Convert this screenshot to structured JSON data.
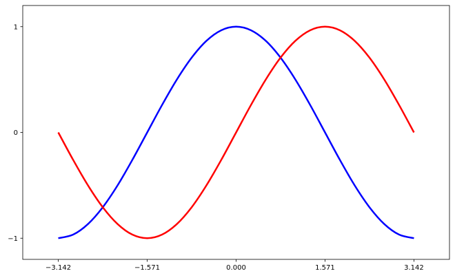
{
  "chart_data": {
    "type": "line",
    "title": "",
    "xlabel": "",
    "ylabel": "",
    "xlim": [
      -3.77,
      3.77
    ],
    "ylim": [
      -1.2,
      1.2
    ],
    "grid": false,
    "xticks": [
      -3.142,
      -1.571,
      0.0,
      1.571,
      3.142
    ],
    "xtick_labels": [
      "−3.142",
      "−1.571",
      "0.000",
      "1.571",
      "3.142"
    ],
    "yticks": [
      -1,
      0,
      1
    ],
    "ytick_labels": [
      "−1",
      "0",
      "1"
    ],
    "x": [
      -3.142,
      -2.88,
      -2.618,
      -2.356,
      -2.094,
      -1.833,
      -1.571,
      -1.309,
      -1.047,
      -0.785,
      -0.524,
      -0.262,
      0,
      0.262,
      0.524,
      0.785,
      1.047,
      1.309,
      1.571,
      1.833,
      2.094,
      2.356,
      2.618,
      2.88,
      3.142
    ],
    "series": [
      {
        "color": "#0000ff",
        "values": [
          -1,
          -0.966,
          -0.866,
          -0.707,
          -0.5,
          -0.259,
          0,
          0.259,
          0.5,
          0.707,
          0.866,
          0.966,
          1,
          0.966,
          0.866,
          0.707,
          0.5,
          0.259,
          0,
          -0.259,
          -0.5,
          -0.707,
          -0.866,
          -0.966,
          -1
        ]
      },
      {
        "color": "#ff0000",
        "values": [
          0,
          -0.259,
          -0.5,
          -0.707,
          -0.866,
          -0.966,
          -1,
          -0.966,
          -0.866,
          -0.707,
          -0.5,
          -0.259,
          0,
          0.259,
          0.5,
          0.707,
          0.866,
          0.966,
          1,
          0.966,
          0.866,
          0.707,
          0.5,
          0.259,
          0
        ]
      }
    ]
  }
}
